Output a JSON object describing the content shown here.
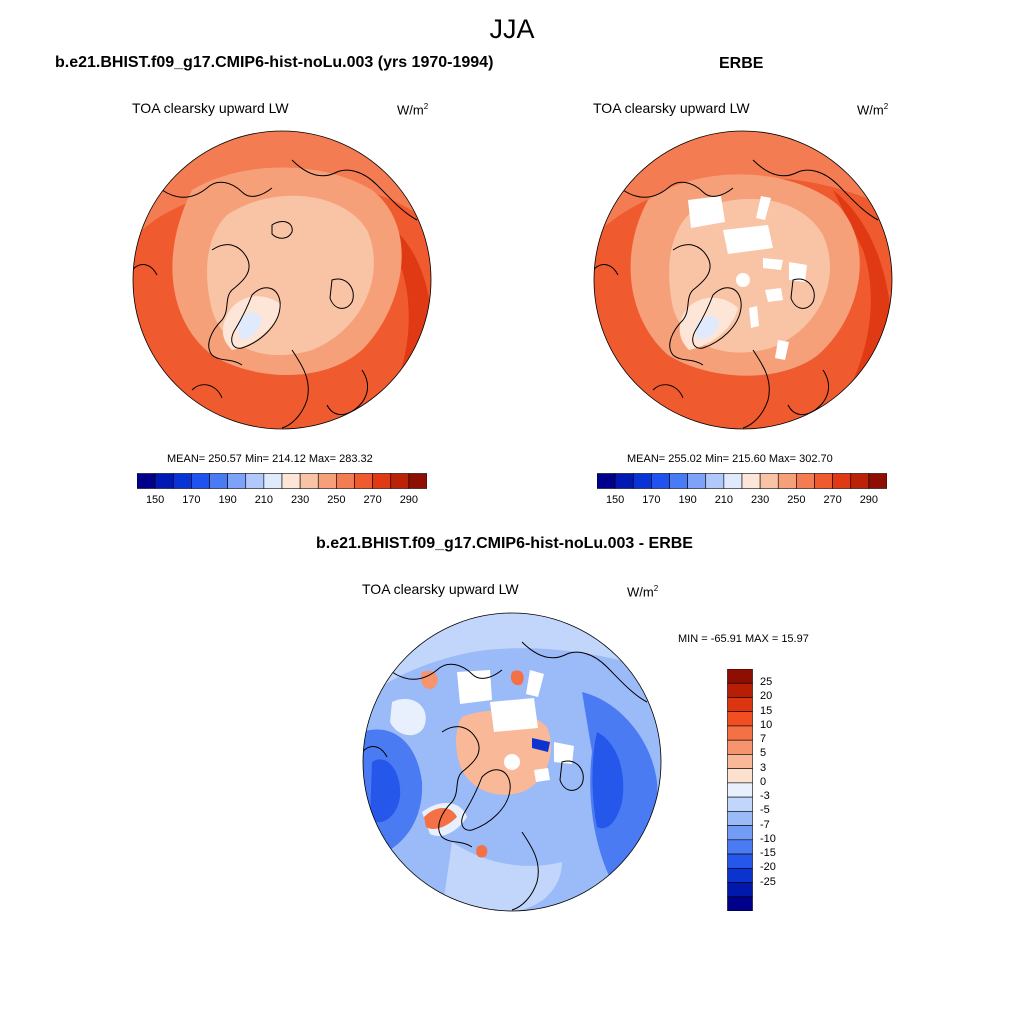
{
  "figure": {
    "season": "JJA"
  },
  "panels": {
    "model": {
      "title": "b.e21.BHIST.f09_g17.CMIP6-hist-noLu.003 (yrs 1970-1994)",
      "variable": "TOA clearsky upward LW",
      "units": "W/m",
      "units_exp": "2",
      "stats": "MEAN= 250.57  Min= 214.12  Max= 283.32"
    },
    "obs": {
      "title": "ERBE",
      "variable": "TOA clearsky upward LW",
      "units": "W/m",
      "units_exp": "2",
      "stats": "MEAN= 255.02  Min= 215.60  Max= 302.70"
    },
    "diff": {
      "title": "b.e21.BHIST.f09_g17.CMIP6-hist-noLu.003 - ERBE",
      "variable": "TOA clearsky upward LW",
      "units": "W/m",
      "units_exp": "2",
      "stats": "MIN = -65.91 MAX =  15.97"
    }
  },
  "colorbars": {
    "absolute": {
      "colors": [
        "#00008b",
        "#0018b4",
        "#0a33d6",
        "#1f52ee",
        "#4a7bf5",
        "#7da2f7",
        "#b0c9fa",
        "#dfeafd",
        "#fde6d8",
        "#f9c3a5",
        "#f6a07a",
        "#f47c52",
        "#f05a2f",
        "#df3a14",
        "#bb2207",
        "#8f0e02"
      ],
      "tick_labels": [
        "150",
        "170",
        "190",
        "210",
        "230",
        "250",
        "270",
        "290"
      ]
    },
    "difference": {
      "colors": [
        "#8f0e02",
        "#b81e06",
        "#dc3611",
        "#f14f22",
        "#f47045",
        "#f6946d",
        "#f9b999",
        "#fde1cf",
        "#e8f0fd",
        "#c2d6fb",
        "#9bbaf8",
        "#739cf6",
        "#4a7bf3",
        "#2457ea",
        "#0a33d0",
        "#0018ac",
        "#00008b"
      ],
      "tick_labels": [
        "25",
        "20",
        "15",
        "10",
        "7",
        "5",
        "3",
        "0",
        "-3",
        "-5",
        "-7",
        "-10",
        "-15",
        "-20",
        "-25"
      ]
    }
  }
}
